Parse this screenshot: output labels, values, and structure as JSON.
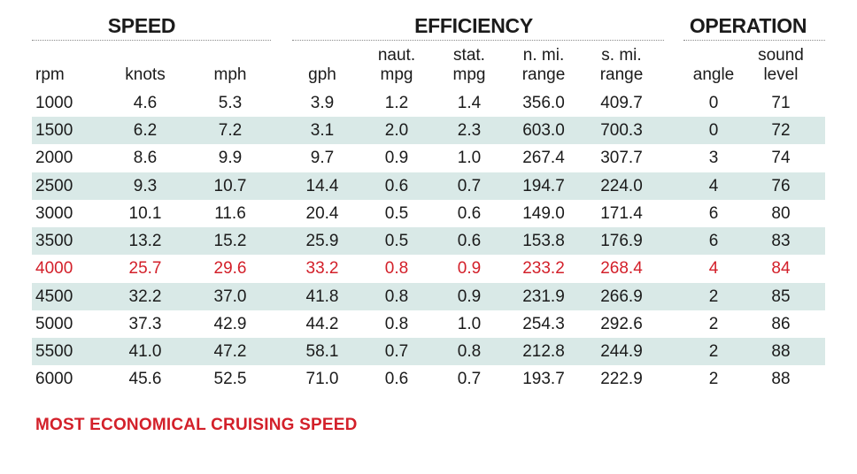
{
  "groups": {
    "speed": "SPEED",
    "efficiency": "EFFICIENCY",
    "operation": "OPERATION"
  },
  "columns": [
    {
      "line1": "",
      "line2": "rpm"
    },
    {
      "line1": "",
      "line2": "knots"
    },
    {
      "line1": "",
      "line2": "mph"
    },
    {
      "line1": "",
      "line2": "gph"
    },
    {
      "line1": "naut.",
      "line2": "mpg"
    },
    {
      "line1": "stat.",
      "line2": "mpg"
    },
    {
      "line1": "n. mi.",
      "line2": "range"
    },
    {
      "line1": "s. mi.",
      "line2": "range"
    },
    {
      "line1": "",
      "line2": "angle"
    },
    {
      "line1": "sound",
      "line2": "level"
    }
  ],
  "rows": [
    [
      "1000",
      "4.6",
      "5.3",
      "3.9",
      "1.2",
      "1.4",
      "356.0",
      "409.7",
      "0",
      "71"
    ],
    [
      "1500",
      "6.2",
      "7.2",
      "3.1",
      "2.0",
      "2.3",
      "603.0",
      "700.3",
      "0",
      "72"
    ],
    [
      "2000",
      "8.6",
      "9.9",
      "9.7",
      "0.9",
      "1.0",
      "267.4",
      "307.7",
      "3",
      "74"
    ],
    [
      "2500",
      "9.3",
      "10.7",
      "14.4",
      "0.6",
      "0.7",
      "194.7",
      "224.0",
      "4",
      "76"
    ],
    [
      "3000",
      "10.1",
      "11.6",
      "20.4",
      "0.5",
      "0.6",
      "149.0",
      "171.4",
      "6",
      "80"
    ],
    [
      "3500",
      "13.2",
      "15.2",
      "25.9",
      "0.5",
      "0.6",
      "153.8",
      "176.9",
      "6",
      "83"
    ],
    [
      "4000",
      "25.7",
      "29.6",
      "33.2",
      "0.8",
      "0.9",
      "233.2",
      "268.4",
      "4",
      "84"
    ],
    [
      "4500",
      "32.2",
      "37.0",
      "41.8",
      "0.8",
      "0.9",
      "231.9",
      "266.9",
      "2",
      "85"
    ],
    [
      "5000",
      "37.3",
      "42.9",
      "44.2",
      "0.8",
      "1.0",
      "254.3",
      "292.6",
      "2",
      "86"
    ],
    [
      "5500",
      "41.0",
      "47.2",
      "58.1",
      "0.7",
      "0.8",
      "212.8",
      "244.9",
      "2",
      "88"
    ],
    [
      "6000",
      "45.6",
      "52.5",
      "71.0",
      "0.6",
      "0.7",
      "193.7",
      "222.9",
      "2",
      "88"
    ]
  ],
  "highlight_row_index": 6,
  "footnote": "MOST ECONOMICAL CRUISING SPEED",
  "colors": {
    "highlight": "#d3202a",
    "row_shade": "#d9e9e7",
    "text": "#1b1b1b"
  }
}
